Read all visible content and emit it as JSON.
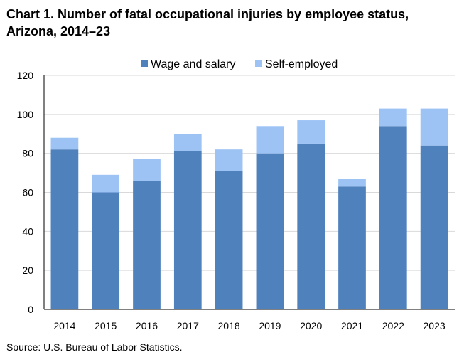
{
  "title": "Chart 1. Number of fatal occupational injuries by employee status, Arizona, 2014–23",
  "source": "Source: U.S. Bureau of Labor Statistics.",
  "colors": {
    "wage": "#4f81bd",
    "self": "#9dc3f5",
    "grid": "#d9d9d9",
    "axis": "#000000"
  },
  "chart_data": {
    "type": "bar",
    "stacked": true,
    "categories": [
      "2014",
      "2015",
      "2016",
      "2017",
      "2018",
      "2019",
      "2020",
      "2021",
      "2022",
      "2023"
    ],
    "series": [
      {
        "name": "Wage and salary",
        "values": [
          82,
          60,
          66,
          81,
          71,
          80,
          85,
          63,
          94,
          84
        ]
      },
      {
        "name": "Self-employed",
        "values": [
          6,
          9,
          11,
          9,
          11,
          14,
          12,
          4,
          9,
          19
        ]
      }
    ],
    "ylim": [
      0,
      120
    ],
    "yticks": [
      0,
      20,
      40,
      60,
      80,
      100,
      120
    ],
    "grid": true,
    "legend_position": "top-center",
    "xlabel": "",
    "ylabel": ""
  }
}
